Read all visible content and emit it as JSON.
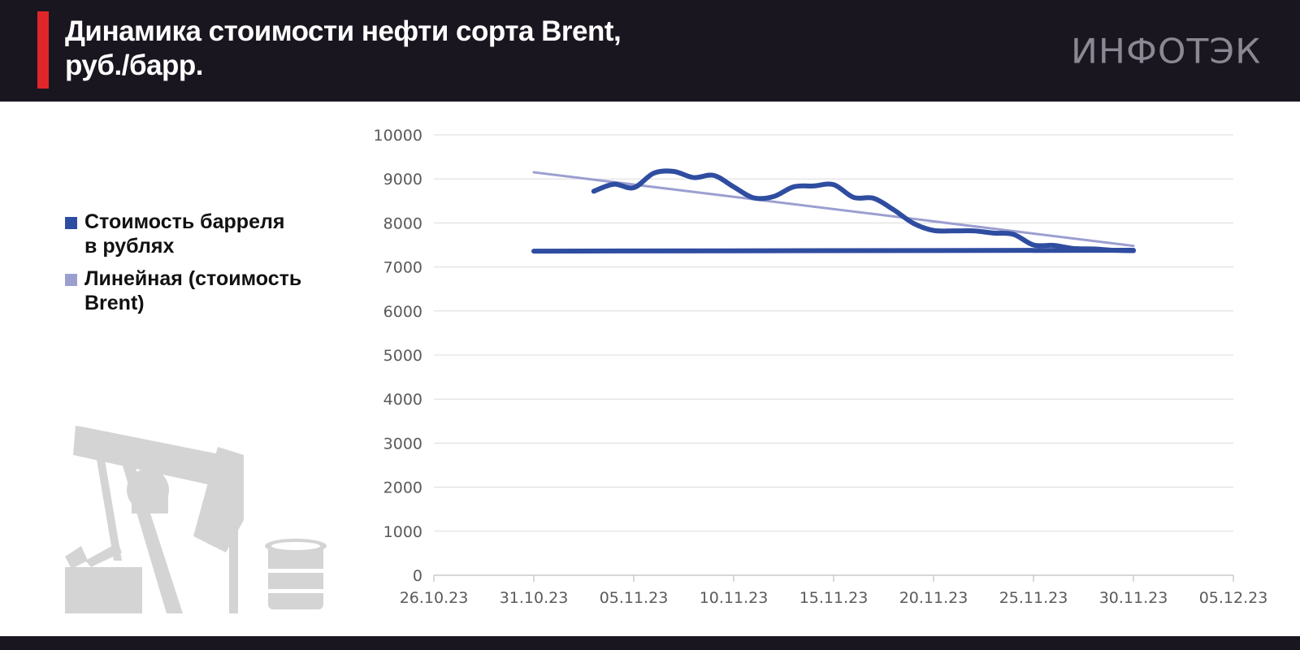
{
  "header": {
    "title_line1": "Динамика стоимости нефти сорта Brent,",
    "title_line2": "руб./барр.",
    "logo_text": "ИНФОТЭК"
  },
  "chart_data": {
    "type": "line",
    "title": "Динамика стоимости нефти сорта Brent, руб./барр.",
    "ylim": [
      0,
      10000
    ],
    "yticks": [
      0,
      1000,
      2000,
      3000,
      4000,
      5000,
      6000,
      7000,
      8000,
      9000,
      10000
    ],
    "xlim": [
      "26.10.23",
      "05.12.23"
    ],
    "xticks": [
      "26.10.23",
      "31.10.23",
      "05.11.23",
      "10.11.23",
      "15.11.23",
      "20.11.23",
      "25.11.23",
      "30.11.23",
      "05.12.23"
    ],
    "grid": true,
    "legend_position": "left",
    "series": [
      {
        "name": "Стоимость барреля в рублях",
        "color": "#2f4da0",
        "points": [
          [
            "03.11.23",
            8720
          ],
          [
            "04.11.23",
            8880
          ],
          [
            "05.11.23",
            8800
          ],
          [
            "06.11.23",
            9130
          ],
          [
            "07.11.23",
            9170
          ],
          [
            "08.11.23",
            9030
          ],
          [
            "09.11.23",
            9080
          ],
          [
            "10.11.23",
            8820
          ],
          [
            "11.11.23",
            8570
          ],
          [
            "12.11.23",
            8600
          ],
          [
            "13.11.23",
            8820
          ],
          [
            "14.11.23",
            8840
          ],
          [
            "15.11.23",
            8870
          ],
          [
            "16.11.23",
            8580
          ],
          [
            "17.11.23",
            8560
          ],
          [
            "18.11.23",
            8300
          ],
          [
            "19.11.23",
            7990
          ],
          [
            "20.11.23",
            7830
          ],
          [
            "21.11.23",
            7820
          ],
          [
            "22.11.23",
            7820
          ],
          [
            "23.11.23",
            7770
          ],
          [
            "24.11.23",
            7740
          ],
          [
            "25.11.23",
            7500
          ],
          [
            "26.11.23",
            7490
          ],
          [
            "27.11.23",
            7420
          ],
          [
            "28.11.23",
            7410
          ],
          [
            "29.11.23",
            7380
          ],
          [
            "30.11.23",
            7370
          ]
        ]
      },
      {
        "name": "Стоимость барреля в рублях",
        "color": "#2f4da0",
        "points": [
          [
            "31.10.23",
            7360
          ],
          [
            "30.11.23",
            7380
          ]
        ]
      },
      {
        "name": "Линейная (стоимость Brent)",
        "color": "#9b9fd0",
        "points": [
          [
            "31.10.23",
            9150
          ],
          [
            "30.11.23",
            7480
          ]
        ]
      }
    ]
  },
  "legend": {
    "items": [
      {
        "line1": "Стоимость барреля",
        "line2": "в рублях",
        "color": "#2f4da0"
      },
      {
        "line1": "Линейная (стоимость",
        "line2": "Brent)",
        "color": "#9b9fd0"
      }
    ]
  }
}
